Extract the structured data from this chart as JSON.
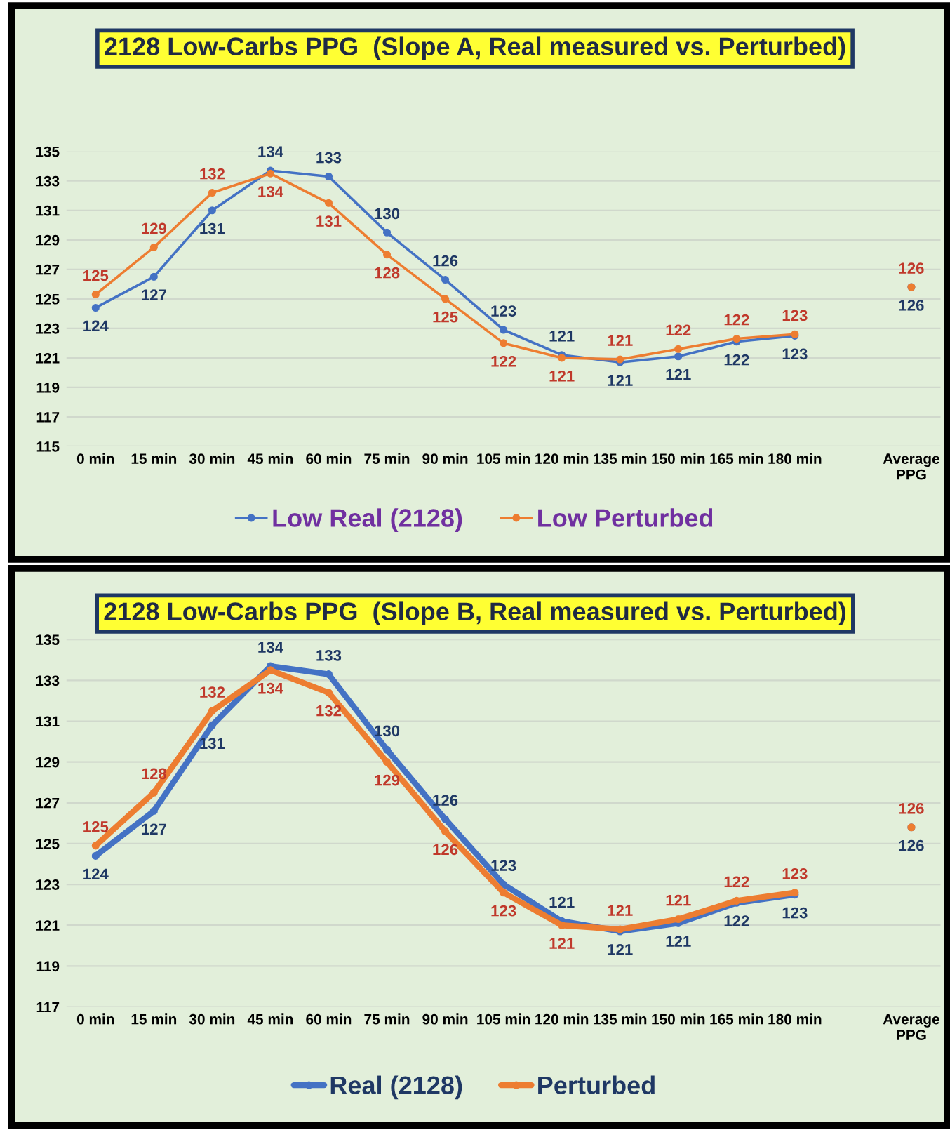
{
  "chart_data": [
    {
      "type": "line",
      "title": "2128 Low-Carbs PPG  (Slope A, Real measured vs. Perturbed)",
      "categories": [
        "0 min",
        "15 min",
        "30 min",
        "45 min",
        "60 min",
        "75 min",
        "90 min",
        "105 min",
        "120 min",
        "135 min",
        "150 min",
        "165 min",
        "180 min",
        null,
        "Average\nPPG"
      ],
      "series": [
        {
          "name": "Low Real (2128)",
          "color": "#4472c4",
          "values": [
            124.4,
            126.5,
            131.0,
            133.7,
            133.3,
            129.5,
            126.3,
            122.9,
            121.2,
            120.7,
            121.1,
            122.1,
            122.5,
            null,
            125.8
          ],
          "value_labels": [
            "124",
            "127",
            "131",
            "134",
            "133",
            "130",
            "126",
            "123",
            "121",
            "121",
            "121",
            "122",
            "123",
            null,
            "126"
          ]
        },
        {
          "name": "Low Perturbed",
          "color": "#ed7d31",
          "values": [
            125.3,
            128.5,
            132.2,
            133.5,
            131.5,
            128.0,
            125.0,
            122.0,
            121.0,
            120.9,
            121.6,
            122.3,
            122.6,
            null,
            125.8
          ],
          "value_labels": [
            "125",
            "129",
            "132",
            "134",
            "131",
            "128",
            "125",
            "122",
            "121",
            "121",
            "122",
            "122",
            "123",
            null,
            "126"
          ]
        }
      ],
      "ylim": [
        115,
        135
      ],
      "yticks": [
        115,
        117,
        119,
        121,
        123,
        125,
        127,
        129,
        131,
        133,
        135
      ],
      "grid": "y",
      "legend": "bottom",
      "marker": "circle",
      "line_style": "solid"
    },
    {
      "type": "line",
      "title": "2128 Low-Carbs PPG  (Slope B, Real measured vs. Perturbed)",
      "categories": [
        "0 min",
        "15 min",
        "30 min",
        "45 min",
        "60 min",
        "75 min",
        "90 min",
        "105 min",
        "120 min",
        "135 min",
        "150 min",
        "165 min",
        "180 min",
        null,
        "Average\nPPG"
      ],
      "series": [
        {
          "name": "Real (2128)",
          "color": "#4472c4",
          "values": [
            124.4,
            126.6,
            130.8,
            133.7,
            133.3,
            129.6,
            126.2,
            123.0,
            121.2,
            120.7,
            121.1,
            122.1,
            122.5,
            null,
            125.8
          ],
          "value_labels": [
            "124",
            "127",
            "131",
            "134",
            "133",
            "130",
            "126",
            "123",
            "121",
            "121",
            "121",
            "122",
            "123",
            null,
            "126"
          ]
        },
        {
          "name": "Perturbed",
          "color": "#ed7d31",
          "values": [
            124.9,
            127.5,
            131.5,
            133.5,
            132.4,
            129.0,
            125.6,
            122.6,
            121.0,
            120.8,
            121.3,
            122.2,
            122.6,
            null,
            125.8
          ],
          "value_labels": [
            "125",
            "128",
            "132",
            "134",
            "132",
            "129",
            "126",
            "123",
            "121",
            "121",
            "121",
            "122",
            "123",
            null,
            "126"
          ]
        }
      ],
      "ylim": [
        117,
        135
      ],
      "yticks": [
        117,
        119,
        121,
        123,
        125,
        127,
        129,
        131,
        133,
        135
      ],
      "grid": "y",
      "legend": "bottom",
      "marker": "circle",
      "line_style": "solid"
    }
  ]
}
